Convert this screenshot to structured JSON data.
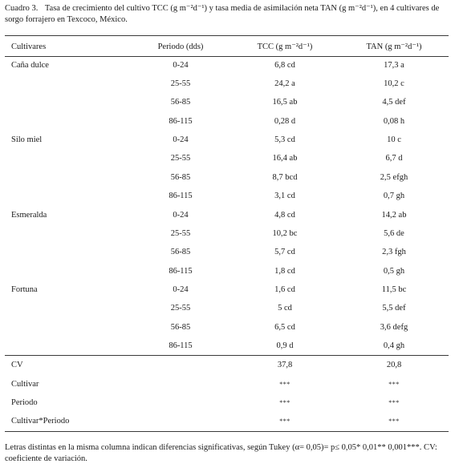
{
  "caption": {
    "label": "Cuadro 3.",
    "text": "Tasa de crecimiento del cultivo TCC (g m⁻²d⁻¹) y tasa media de asimilación neta TAN (g m⁻²d⁻¹), en 4 cultivares de sorgo forrajero en Texcoco, México."
  },
  "headers": {
    "cultivares": "Cultivares",
    "periodo": "Periodo (dds)",
    "tcc": "TCC (g m⁻²d⁻¹)",
    "tan": "TAN (g m⁻²d⁻¹)"
  },
  "rows": [
    {
      "cultivar": "Caña dulce",
      "periodo": "0-24",
      "tcc": "6,8 cd",
      "tan": "17,3 a"
    },
    {
      "cultivar": "",
      "periodo": "25-55",
      "tcc": "24,2 a",
      "tan": "10,2 c"
    },
    {
      "cultivar": "",
      "periodo": "56-85",
      "tcc": "16,5 ab",
      "tan": "4,5 def"
    },
    {
      "cultivar": "",
      "periodo": "86-115",
      "tcc": "0,28 d",
      "tan": "0,08 h"
    },
    {
      "cultivar": "Silo miel",
      "periodo": "0-24",
      "tcc": "5,3 cd",
      "tan": "10 c"
    },
    {
      "cultivar": "",
      "periodo": "25-55",
      "tcc": "16,4 ab",
      "tan": "6,7 d"
    },
    {
      "cultivar": "",
      "periodo": "56-85",
      "tcc": "8,7 bcd",
      "tan": "2,5 efgh"
    },
    {
      "cultivar": "",
      "periodo": "86-115",
      "tcc": "3,1 cd",
      "tan": "0,7 gh"
    },
    {
      "cultivar": "Esmeralda",
      "periodo": "0-24",
      "tcc": "4,8 cd",
      "tan": "14,2 ab"
    },
    {
      "cultivar": "",
      "periodo": "25-55",
      "tcc": "10,2 bc",
      "tan": "5,6 de"
    },
    {
      "cultivar": "",
      "periodo": "56-85",
      "tcc": "5,7 cd",
      "tan": "2,3 fgh"
    },
    {
      "cultivar": "",
      "periodo": "86-115",
      "tcc": "1,8 cd",
      "tan": "0,5 gh"
    },
    {
      "cultivar": "Fortuna",
      "periodo": "0-24",
      "tcc": "1,6 cd",
      "tan": "11,5 bc"
    },
    {
      "cultivar": "",
      "periodo": "25-55",
      "tcc": "5 cd",
      "tan": "5,5 def"
    },
    {
      "cultivar": "",
      "periodo": "56-85",
      "tcc": "6,5 cd",
      "tan": "3,6 defg"
    },
    {
      "cultivar": "",
      "periodo": "86-115",
      "tcc": "0,9 d",
      "tan": "0,4 gh"
    }
  ],
  "stats": [
    {
      "label": "CV",
      "tcc": "37,8",
      "tan": "20,8"
    },
    {
      "label": "Cultivar",
      "tcc": "***",
      "tan": "***"
    },
    {
      "label": "Periodo",
      "tcc": "***",
      "tan": "***"
    },
    {
      "label": "Cultivar*Periodo",
      "tcc": "***",
      "tan": "***"
    }
  ],
  "footnote": "Letras distintas en la misma columna indican diferencias significativas, según Tukey (α= 0,05)= p≤ 0,05* 0,01** 0,001***. CV: coeficiente de variación."
}
